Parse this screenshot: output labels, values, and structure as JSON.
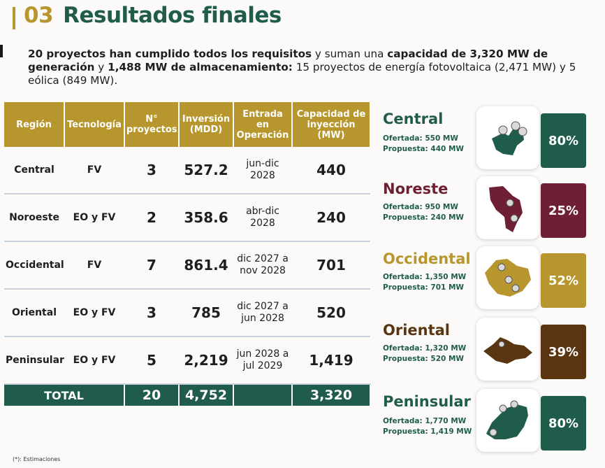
{
  "header": {
    "section_number": "03",
    "title": "Resultados finales"
  },
  "intro": {
    "part1": "20 proyectos han cumplido todos los requisitos",
    "part2": " y suman una ",
    "part3": "capacidad de 3,320 MW de generación",
    "part4": " y ",
    "part5": "1,488 MW de almacenamiento:",
    "part6": " 15 proyectos de energía fotovoltaica (2,471 MW) y 5 eólica (849 MW)."
  },
  "table": {
    "headers": [
      "Región",
      "Tecnología",
      "N° proyectos",
      "Inversión (MDD)",
      "Entrada en Operación",
      "Capacidad de inyección (MW)"
    ],
    "rows": [
      {
        "region": "Central",
        "tech": "FV",
        "count": "3",
        "investment": "527.2",
        "entry": "jun-dic 2028",
        "capacity": "440"
      },
      {
        "region": "Noroeste",
        "tech": "EO y FV",
        "count": "2",
        "investment": "358.6",
        "entry": "abr-dic 2028",
        "capacity": "240"
      },
      {
        "region": "Occidental",
        "tech": "FV",
        "count": "7",
        "investment": "861.4",
        "entry": "dic 2027 a nov 2028",
        "capacity": "701"
      },
      {
        "region": "Oriental",
        "tech": "EO y FV",
        "count": "3",
        "investment": "785",
        "entry": "dic 2027 a jun 2028",
        "capacity": "520"
      },
      {
        "region": "Peninsular",
        "tech": "EO y FV",
        "count": "5",
        "investment": "2,219",
        "entry": "jun 2028 a jul 2029",
        "capacity": "1,419"
      }
    ],
    "total": {
      "label": "TOTAL",
      "tech": "",
      "count": "20",
      "investment": "4,752",
      "entry": "",
      "capacity": "3,320"
    }
  },
  "regions": [
    {
      "name": "Central",
      "offered": "Ofertada: 550 MW",
      "proposed": "Propuesta: 440 MW",
      "percent": "80%",
      "color": "#1f5c4b",
      "name_color": "#1f5c4b"
    },
    {
      "name": "Noreste",
      "offered": "Ofertada: 950 MW",
      "proposed": "Propuesta: 240 MW",
      "percent": "25%",
      "color": "#6e1f34",
      "name_color": "#6e1f34"
    },
    {
      "name": "Occidental",
      "offered": "Ofertada: 1,350 MW",
      "proposed": "Propuesta: 701 MW",
      "percent": "52%",
      "color": "#b8962e",
      "name_color": "#b8962e"
    },
    {
      "name": "Oriental",
      "offered": "Ofertada: 1,320 MW",
      "proposed": "Propuesta: 520 MW",
      "percent": "39%",
      "color": "#5a3512",
      "name_color": "#5a3512"
    },
    {
      "name": "Peninsular",
      "offered": "Ofertada: 1,770 MW",
      "proposed": "Propuesta: 1,419 MW",
      "percent": "80%",
      "color": "#1f5c4b",
      "name_color": "#1f5c4b"
    }
  ],
  "footnote": "(*): Estimaciones"
}
